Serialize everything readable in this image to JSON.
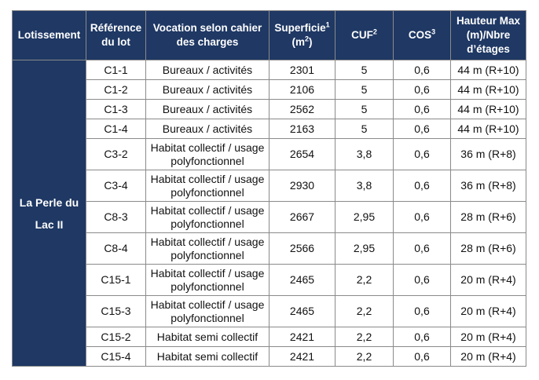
{
  "headers": {
    "lotissement": "Lotissement",
    "reference": "Référence du lot",
    "vocation": "Vocation selon cahier des charges",
    "superficie": "Superficie",
    "superficie_sup": "1",
    "superficie_unit": "(m",
    "superficie_unit_sup": "2",
    "superficie_unit_end": ")",
    "cuf": "CUF",
    "cuf_sup": "2",
    "cos": "COS",
    "cos_sup": "3",
    "hauteur": "Hauteur Max (m)/Nbre d’étages"
  },
  "lotissement_name": "La Perle du Lac II",
  "rows": [
    {
      "ref": "C1-1",
      "vocation": "Bureaux / activités",
      "superficie": "2301",
      "cuf": "5",
      "cos": "0,6",
      "hauteur": "44 m (R+10)"
    },
    {
      "ref": "C1-2",
      "vocation": "Bureaux / activités",
      "superficie": "2106",
      "cuf": "5",
      "cos": "0,6",
      "hauteur": "44 m (R+10)"
    },
    {
      "ref": "C1-3",
      "vocation": "Bureaux / activités",
      "superficie": "2562",
      "cuf": "5",
      "cos": "0,6",
      "hauteur": "44 m (R+10)"
    },
    {
      "ref": "C1-4",
      "vocation": "Bureaux / activités",
      "superficie": "2163",
      "cuf": "5",
      "cos": "0,6",
      "hauteur": "44 m (R+10)"
    },
    {
      "ref": "C3-2",
      "vocation": "Habitat collectif / usage polyfonctionnel",
      "superficie": "2654",
      "cuf": "3,8",
      "cos": "0,6",
      "hauteur": "36 m (R+8)"
    },
    {
      "ref": "C3-4",
      "vocation": "Habitat collectif / usage polyfonctionnel",
      "superficie": "2930",
      "cuf": "3,8",
      "cos": "0,6",
      "hauteur": "36 m (R+8)"
    },
    {
      "ref": "C8-3",
      "vocation": "Habitat collectif / usage polyfonctionnel",
      "superficie": "2667",
      "cuf": "2,95",
      "cos": "0,6",
      "hauteur": "28 m (R+6)"
    },
    {
      "ref": "C8-4",
      "vocation": "Habitat collectif / usage polyfonctionnel",
      "superficie": "2566",
      "cuf": "2,95",
      "cos": "0,6",
      "hauteur": "28 m (R+6)"
    },
    {
      "ref": "C15-1",
      "vocation": "Habitat collectif / usage polyfonctionnel",
      "superficie": "2465",
      "cuf": "2,2",
      "cos": "0,6",
      "hauteur": "20 m (R+4)"
    },
    {
      "ref": "C15-3",
      "vocation": "Habitat collectif / usage polyfonctionnel",
      "superficie": "2465",
      "cuf": "2,2",
      "cos": "0,6",
      "hauteur": "20 m (R+4)"
    },
    {
      "ref": "C15-2",
      "vocation": "Habitat semi collectif",
      "superficie": "2421",
      "cuf": "2,2",
      "cos": "0,6",
      "hauteur": "20 m (R+4)"
    },
    {
      "ref": "C15-4",
      "vocation": "Habitat semi collectif",
      "superficie": "2421",
      "cuf": "2,2",
      "cos": "0,6",
      "hauteur": "20 m (R+4)"
    }
  ]
}
